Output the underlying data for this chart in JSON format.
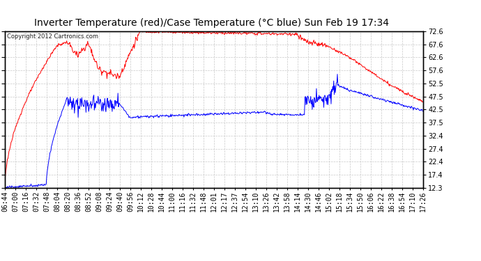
{
  "title": "Inverter Temperature (red)/Case Temperature (°C blue) Sun Feb 19 17:34",
  "copyright": "Copyright 2012 Cartronics.com",
  "ylabel_right": [
    "72.6",
    "67.6",
    "62.6",
    "57.6",
    "52.5",
    "47.5",
    "42.5",
    "37.5",
    "32.4",
    "27.4",
    "22.4",
    "17.4",
    "12.3"
  ],
  "yticks": [
    72.6,
    67.6,
    62.6,
    57.6,
    52.5,
    47.5,
    42.5,
    37.5,
    32.4,
    27.4,
    22.4,
    17.4,
    12.3
  ],
  "ylim": [
    12.3,
    72.6
  ],
  "x_labels": [
    "06:44",
    "07:00",
    "07:16",
    "07:32",
    "07:48",
    "08:04",
    "08:20",
    "08:36",
    "08:52",
    "09:08",
    "09:24",
    "09:40",
    "09:56",
    "10:12",
    "10:28",
    "10:44",
    "11:00",
    "11:16",
    "11:32",
    "11:48",
    "12:01",
    "12:17",
    "12:37",
    "12:54",
    "13:10",
    "13:26",
    "13:42",
    "13:58",
    "14:14",
    "14:30",
    "14:46",
    "15:02",
    "15:18",
    "15:34",
    "15:50",
    "16:06",
    "16:22",
    "16:38",
    "16:54",
    "17:10",
    "17:26"
  ],
  "background_color": "#ffffff",
  "plot_bg_color": "#ffffff",
  "grid_color": "#c8c8c8",
  "red_color": "#ff0000",
  "blue_color": "#0000ff",
  "title_fontsize": 10,
  "tick_fontsize": 7
}
